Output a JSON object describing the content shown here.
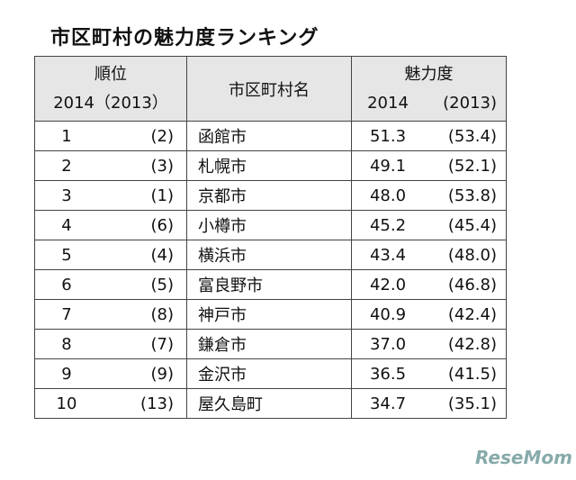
{
  "title": "市区町村の魅力度ランキング",
  "table": {
    "header": {
      "rank": "順位",
      "rank_years": "2014（2013）",
      "name": "市区町村名",
      "score": "魅力度",
      "score_year": "2014",
      "score_prev_year": "(2013)"
    },
    "rows": [
      [
        "1",
        "(2)",
        "函館市",
        "51.3",
        "(53.4)"
      ],
      [
        "2",
        "(3)",
        "札幌市",
        "49.1",
        "(52.1)"
      ],
      [
        "3",
        "(1)",
        "京都市",
        "48.0",
        "(53.8)"
      ],
      [
        "4",
        "(6)",
        "小樽市",
        "45.2",
        "(45.4)"
      ],
      [
        "5",
        "(4)",
        "横浜市",
        "43.4",
        "(48.0)"
      ],
      [
        "6",
        "(5)",
        "富良野市",
        "42.0",
        "(46.8)"
      ],
      [
        "7",
        "(8)",
        "神戸市",
        "40.9",
        "(42.4)"
      ],
      [
        "8",
        "(7)",
        "鎌倉市",
        "37.0",
        "(42.8)"
      ],
      [
        "9",
        "(9)",
        "金沢市",
        "36.5",
        "(41.5)"
      ],
      [
        "10",
        "(13)",
        "屋久島町",
        "34.7",
        "(35.1)"
      ]
    ]
  },
  "watermark": "ReseMom"
}
